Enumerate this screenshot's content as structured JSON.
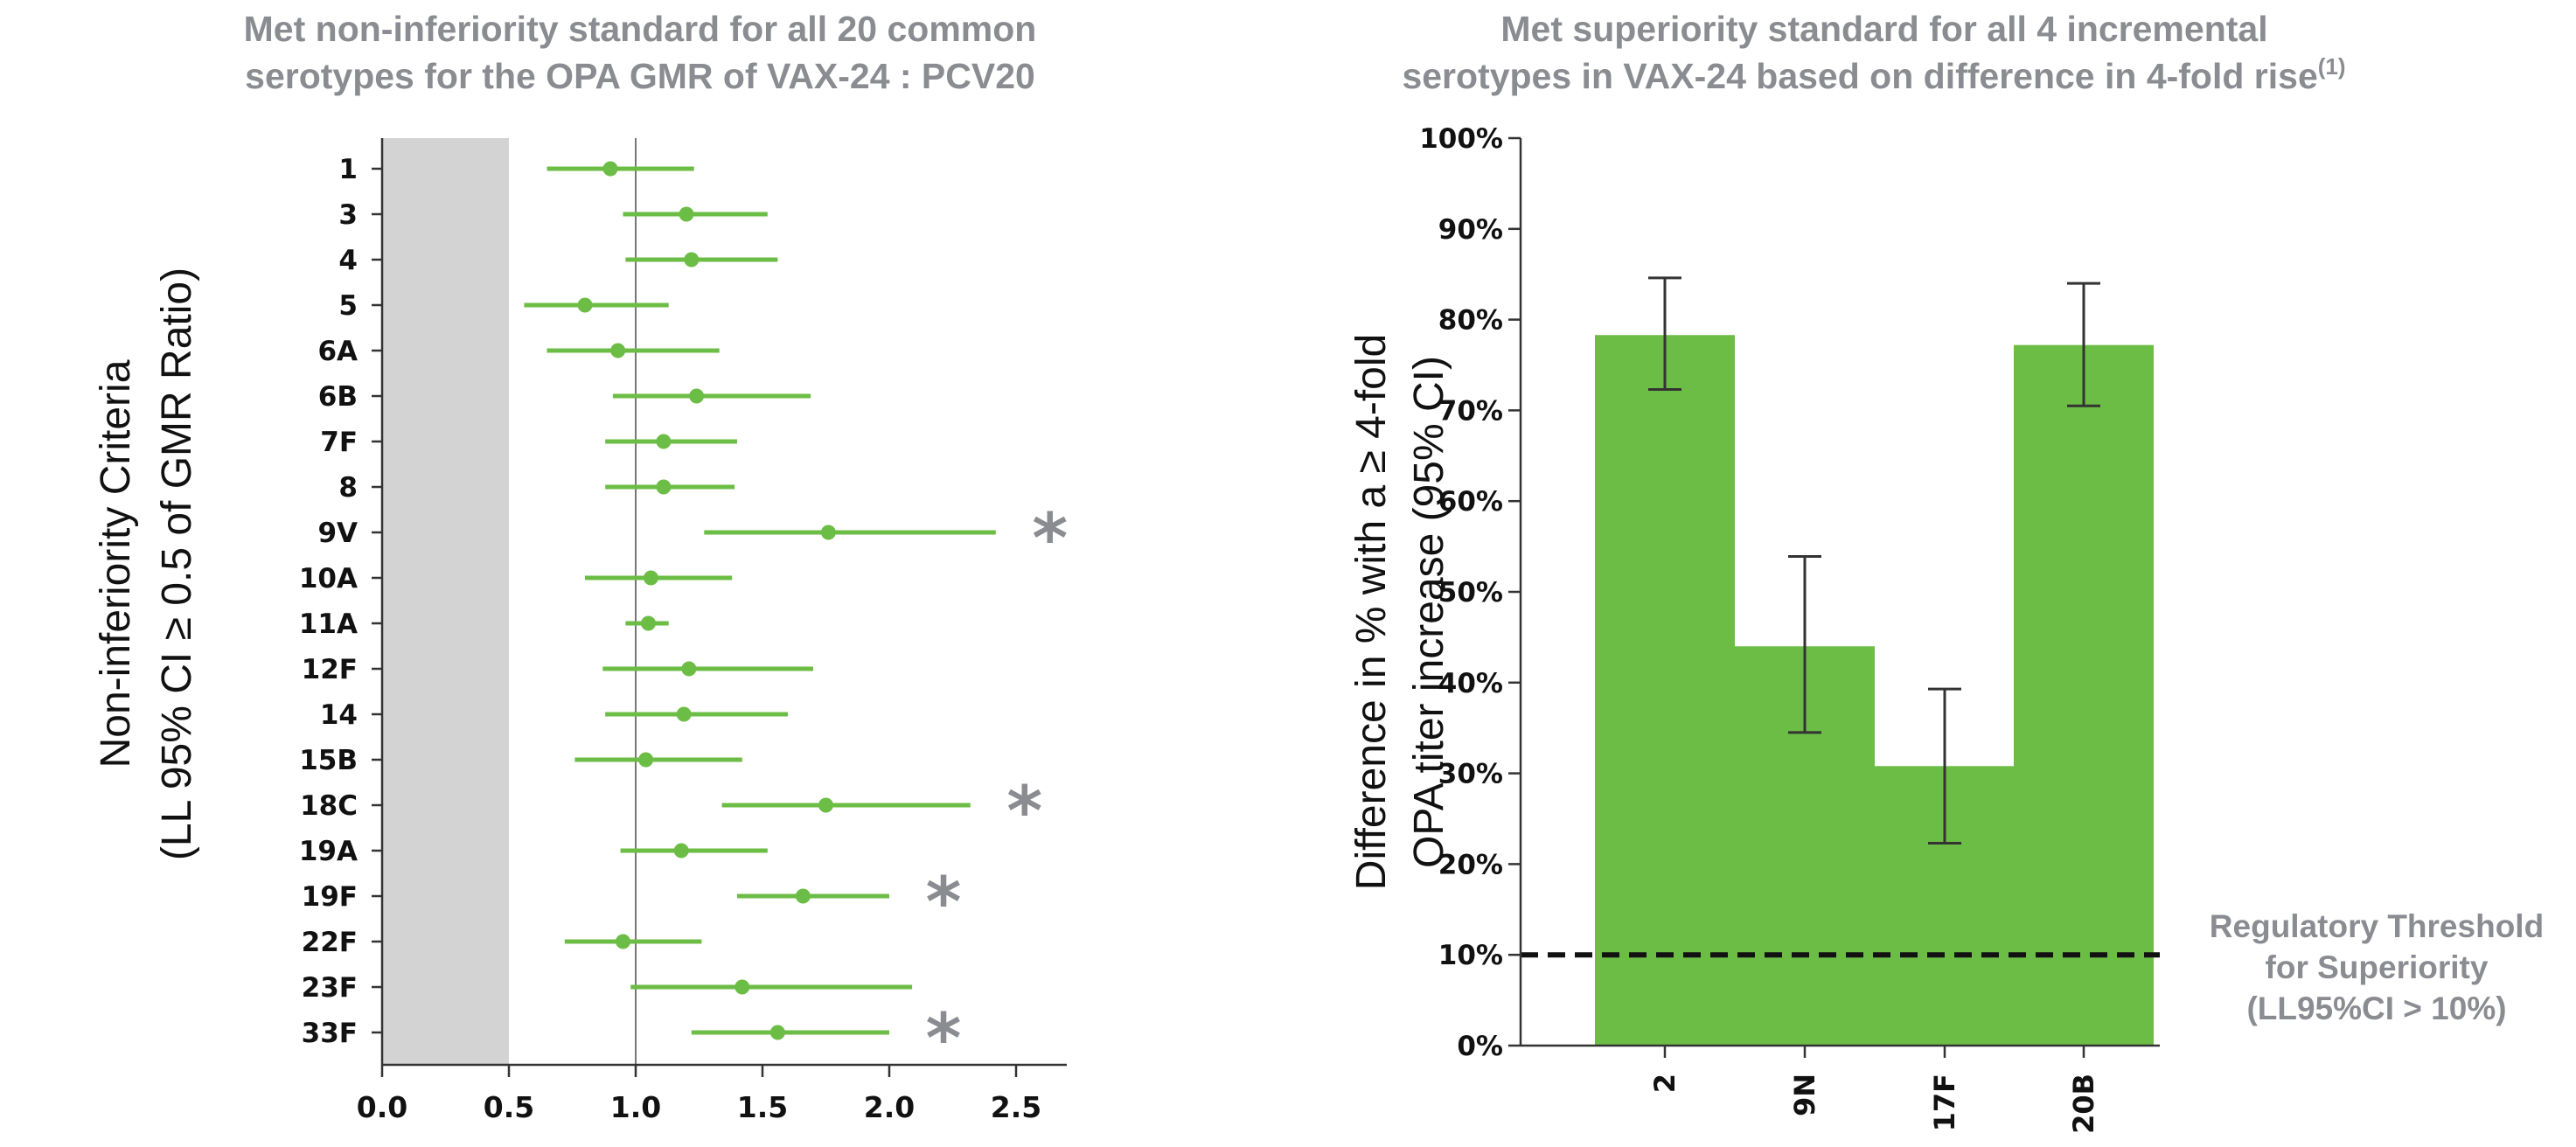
{
  "chart_data": [
    {
      "type": "forest",
      "title": [
        "Met non-inferiority standard for all 20 common",
        "serotypes for the OPA GMR of VAX-24 : PCV20"
      ],
      "ylabel": [
        "Non-inferiority Criteria",
        "(LL 95% CI ≥ 0.5 of GMR Ratio)"
      ],
      "xlabel": "",
      "xlim": [
        0,
        2.7
      ],
      "x_ticks": [
        "0.0",
        "0.5",
        "1.0",
        "1.5",
        "2.0",
        "2.5"
      ],
      "x_tick_values": [
        0,
        0.5,
        1.0,
        1.5,
        2.0,
        2.5
      ],
      "reference_line": 1.0,
      "shaded_region": [
        0,
        0.5
      ],
      "marker_color": "#6cbd45",
      "shade_color": "#d3d3d3",
      "significance_marker": "*",
      "categories": [
        "1",
        "3",
        "4",
        "5",
        "6A",
        "6B",
        "7F",
        "8",
        "9V",
        "10A",
        "11A",
        "12F",
        "14",
        "15B",
        "18C",
        "19A",
        "19F",
        "22F",
        "23F",
        "33F"
      ],
      "estimates": [
        0.9,
        1.2,
        1.22,
        0.8,
        0.93,
        1.24,
        1.11,
        1.11,
        1.76,
        1.06,
        1.05,
        1.21,
        1.19,
        1.04,
        1.75,
        1.18,
        1.66,
        0.95,
        1.42,
        1.56
      ],
      "ci_low": [
        0.65,
        0.95,
        0.96,
        0.56,
        0.65,
        0.91,
        0.88,
        0.88,
        1.27,
        0.8,
        0.96,
        0.87,
        0.88,
        0.76,
        1.34,
        0.94,
        1.4,
        0.72,
        0.98,
        1.22
      ],
      "ci_high": [
        1.23,
        1.52,
        1.56,
        1.13,
        1.33,
        1.69,
        1.4,
        1.39,
        2.42,
        1.38,
        1.13,
        1.7,
        1.6,
        1.42,
        2.32,
        1.52,
        2.0,
        1.26,
        2.09,
        2.0
      ],
      "significant": [
        false,
        false,
        false,
        false,
        false,
        false,
        false,
        false,
        true,
        false,
        false,
        false,
        false,
        false,
        true,
        false,
        true,
        false,
        false,
        true
      ]
    },
    {
      "type": "bar",
      "title": [
        "Met superiority standard for all 4 incremental",
        "serotypes in VAX-24 based on difference in 4-fold rise"
      ],
      "title_superscript": "(1)",
      "ylabel": [
        "Difference in % with a ≥ 4-fold",
        "OPA titer increase (95% CI)"
      ],
      "xlabel": "",
      "ylim": [
        0,
        100
      ],
      "y_ticks": [
        "0%",
        "10%",
        "20%",
        "30%",
        "40%",
        "50%",
        "60%",
        "70%",
        "80%",
        "90%",
        "100%"
      ],
      "y_tick_values": [
        0,
        10,
        20,
        30,
        40,
        50,
        60,
        70,
        80,
        90,
        100
      ],
      "categories": [
        "2",
        "9N",
        "17F",
        "20B"
      ],
      "values": [
        78.3,
        44.0,
        30.8,
        77.2
      ],
      "ci_low": [
        72.3,
        34.5,
        22.3,
        70.5
      ],
      "ci_high": [
        84.6,
        53.9,
        39.3,
        84.0
      ],
      "bar_color": "#6cbd45",
      "threshold": 10,
      "threshold_label": [
        "Regulatory Threshold",
        "for Superiority",
        "(LL95%CI > 10%)"
      ]
    }
  ]
}
